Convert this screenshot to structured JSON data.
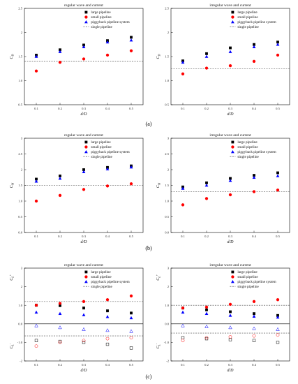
{
  "figure": {
    "captions": [
      "(a)",
      "(b)",
      "(c)"
    ]
  },
  "chart_data": [
    {
      "type": "scatter",
      "title": "regular wave and current",
      "ylabel": "C_D",
      "xlabel": "d/D",
      "xlim": [
        0.05,
        0.55
      ],
      "ylim": [
        0.5,
        2.5
      ],
      "yticks": [
        0.5,
        1.0,
        1.5,
        2.0,
        2.5
      ],
      "xticks": [
        0.1,
        0.2,
        0.3,
        0.4,
        0.5
      ],
      "x": [
        0.1,
        0.2,
        0.3,
        0.4,
        0.5
      ],
      "series": [
        {
          "name": "large pipeline",
          "marker": "square",
          "color": "#000000",
          "values": [
            1.53,
            1.64,
            1.74,
            1.83,
            1.9
          ]
        },
        {
          "name": "small pipeline",
          "marker": "circle",
          "color": "#ff0000",
          "values": [
            1.2,
            1.38,
            1.45,
            1.53,
            1.62
          ]
        },
        {
          "name": "piggyback pipeline system",
          "marker": "triangle",
          "color": "#0000ff",
          "values": [
            1.5,
            1.6,
            1.7,
            1.8,
            1.84
          ]
        }
      ],
      "reference": {
        "name": "single pipeline",
        "value": 1.4
      },
      "legend": "top-left",
      "caption_index": 0
    },
    {
      "type": "scatter",
      "title": "irregular wave and current",
      "ylabel": "C_D",
      "xlabel": "d/D",
      "xlim": [
        0.05,
        0.55
      ],
      "ylim": [
        0.5,
        2.5
      ],
      "yticks": [
        0.5,
        1.0,
        1.5,
        2.0,
        2.5
      ],
      "xticks": [
        0.1,
        0.2,
        0.3,
        0.4,
        0.5
      ],
      "x": [
        0.1,
        0.2,
        0.3,
        0.4,
        0.5
      ],
      "series": [
        {
          "name": "large pipeline",
          "marker": "square",
          "color": "#000000",
          "values": [
            1.41,
            1.56,
            1.68,
            1.75,
            1.8
          ]
        },
        {
          "name": "small pipeline",
          "marker": "circle",
          "color": "#ff0000",
          "values": [
            1.14,
            1.26,
            1.31,
            1.4,
            1.53
          ]
        },
        {
          "name": "piggyback pipeline system",
          "marker": "triangle",
          "color": "#0000ff",
          "values": [
            1.38,
            1.5,
            1.6,
            1.7,
            1.75
          ]
        }
      ],
      "reference": {
        "name": "single pipeline",
        "value": 1.25
      },
      "legend": "top-left",
      "caption_index": null
    },
    {
      "type": "scatter",
      "title": "regular wave and current",
      "ylabel": "C_M",
      "xlabel": "d/D",
      "xlim": [
        0.05,
        0.55
      ],
      "ylim": [
        0,
        3
      ],
      "yticks": [
        0,
        0.5,
        1.0,
        1.5,
        2.0,
        2.5,
        3.0
      ],
      "xticks": [
        0.1,
        0.2,
        0.3,
        0.4,
        0.5
      ],
      "x": [
        0.1,
        0.2,
        0.3,
        0.4,
        0.5
      ],
      "series": [
        {
          "name": "large pipeline",
          "marker": "square",
          "color": "#000000",
          "values": [
            1.7,
            1.8,
            2.0,
            2.07,
            2.12
          ]
        },
        {
          "name": "small pipeline",
          "marker": "circle",
          "color": "#ff0000",
          "values": [
            1.0,
            1.18,
            1.37,
            1.48,
            1.55
          ]
        },
        {
          "name": "piggyback pipeline system",
          "marker": "triangle",
          "color": "#0000ff",
          "values": [
            1.63,
            1.72,
            1.93,
            2.02,
            2.08
          ]
        }
      ],
      "reference": {
        "name": "single pipeline",
        "value": 1.5
      },
      "legend": "top-left",
      "caption_index": 1
    },
    {
      "type": "scatter",
      "title": "irregular wave and current",
      "ylabel": "C_M",
      "xlabel": "d/D",
      "xlim": [
        0.05,
        0.55
      ],
      "ylim": [
        0,
        3
      ],
      "yticks": [
        0,
        0.5,
        1.0,
        1.5,
        2.0,
        2.5,
        3.0
      ],
      "xticks": [
        0.1,
        0.2,
        0.3,
        0.4,
        0.5
      ],
      "x": [
        0.1,
        0.2,
        0.3,
        0.4,
        0.5
      ],
      "series": [
        {
          "name": "large pipeline",
          "marker": "square",
          "color": "#000000",
          "values": [
            1.45,
            1.58,
            1.72,
            1.82,
            1.9
          ]
        },
        {
          "name": "small pipeline",
          "marker": "circle",
          "color": "#ff0000",
          "values": [
            0.88,
            1.08,
            1.2,
            1.3,
            1.35
          ]
        },
        {
          "name": "piggyback pipeline system",
          "marker": "triangle",
          "color": "#0000ff",
          "values": [
            1.4,
            1.5,
            1.65,
            1.75,
            1.8
          ]
        }
      ],
      "reference": {
        "name": "single pipeline",
        "value": 1.3
      },
      "legend": "top-left",
      "caption_index": null
    },
    {
      "type": "scatter",
      "title": "regular wave and current",
      "ylabel": "C_L^+",
      "ylabel2": "C_L^-",
      "xlabel": "d/D",
      "xlim": [
        0.05,
        0.55
      ],
      "ylim": [
        -2,
        3
      ],
      "yticks": [
        -2,
        -1,
        0,
        1,
        2,
        3
      ],
      "xticks": [
        0.1,
        0.2,
        0.3,
        0.4,
        0.5
      ],
      "x": [
        0.1,
        0.2,
        0.3,
        0.4,
        0.5
      ],
      "series": [
        {
          "name": "large pipeline",
          "marker": "square",
          "color": "#000000",
          "values": [
            1.0,
            0.98,
            0.85,
            0.7,
            0.58
          ]
        },
        {
          "name": "small pipeline",
          "marker": "circle",
          "color": "#ff0000",
          "values": [
            1.0,
            1.1,
            1.2,
            1.3,
            1.5
          ]
        },
        {
          "name": "piggyback pipeline system",
          "marker": "triangle",
          "color": "#0000ff",
          "values": [
            0.62,
            0.55,
            0.48,
            0.38,
            0.32
          ]
        },
        {
          "name": "",
          "marker": "square-open",
          "color": "#000000",
          "values": [
            -0.9,
            -0.95,
            -1.0,
            -1.1,
            -1.3
          ]
        },
        {
          "name": "",
          "marker": "circle-open",
          "color": "#ff0000",
          "values": [
            -1.2,
            -1.0,
            -0.9,
            -0.8,
            -0.75
          ]
        },
        {
          "name": "",
          "marker": "triangle-open",
          "color": "#0000ff",
          "values": [
            -0.1,
            -0.2,
            -0.3,
            -0.35,
            -0.4
          ]
        }
      ],
      "reference": {
        "name": "single pipeline",
        "value": 1.2
      },
      "reference2": {
        "value": -0.65
      },
      "legend": "top-left",
      "caption_index": 2
    },
    {
      "type": "scatter",
      "title": "irregular wave and current",
      "ylabel": "C_L^+",
      "ylabel2": "C_L^-",
      "xlabel": "d/D",
      "xlim": [
        0.05,
        0.55
      ],
      "ylim": [
        -2,
        3
      ],
      "yticks": [
        -2,
        -1,
        0,
        1,
        2,
        3
      ],
      "xticks": [
        0.1,
        0.2,
        0.3,
        0.4,
        0.5
      ],
      "x": [
        0.1,
        0.2,
        0.3,
        0.4,
        0.5
      ],
      "series": [
        {
          "name": "large pipeline",
          "marker": "square",
          "color": "#000000",
          "values": [
            0.85,
            0.75,
            0.65,
            0.55,
            0.45
          ]
        },
        {
          "name": "small pipeline",
          "marker": "circle",
          "color": "#ff0000",
          "values": [
            0.85,
            0.9,
            1.05,
            1.2,
            1.3
          ]
        },
        {
          "name": "piggyback pipeline system",
          "marker": "triangle",
          "color": "#0000ff",
          "values": [
            0.62,
            0.55,
            0.45,
            0.4,
            0.35
          ]
        },
        {
          "name": "",
          "marker": "square-open",
          "color": "#000000",
          "values": [
            -0.75,
            -0.8,
            -0.85,
            -0.9,
            -1.0
          ]
        },
        {
          "name": "",
          "marker": "circle-open",
          "color": "#ff0000",
          "values": [
            -0.9,
            -0.75,
            -0.7,
            -0.65,
            -0.6
          ]
        },
        {
          "name": "",
          "marker": "triangle-open",
          "color": "#0000ff",
          "values": [
            -0.1,
            -0.15,
            -0.2,
            -0.25,
            -0.3
          ]
        }
      ],
      "reference": {
        "name": "single pipeline",
        "value": 1.0
      },
      "reference2": {
        "value": -0.5
      },
      "legend": "top-left",
      "caption_index": null
    }
  ]
}
